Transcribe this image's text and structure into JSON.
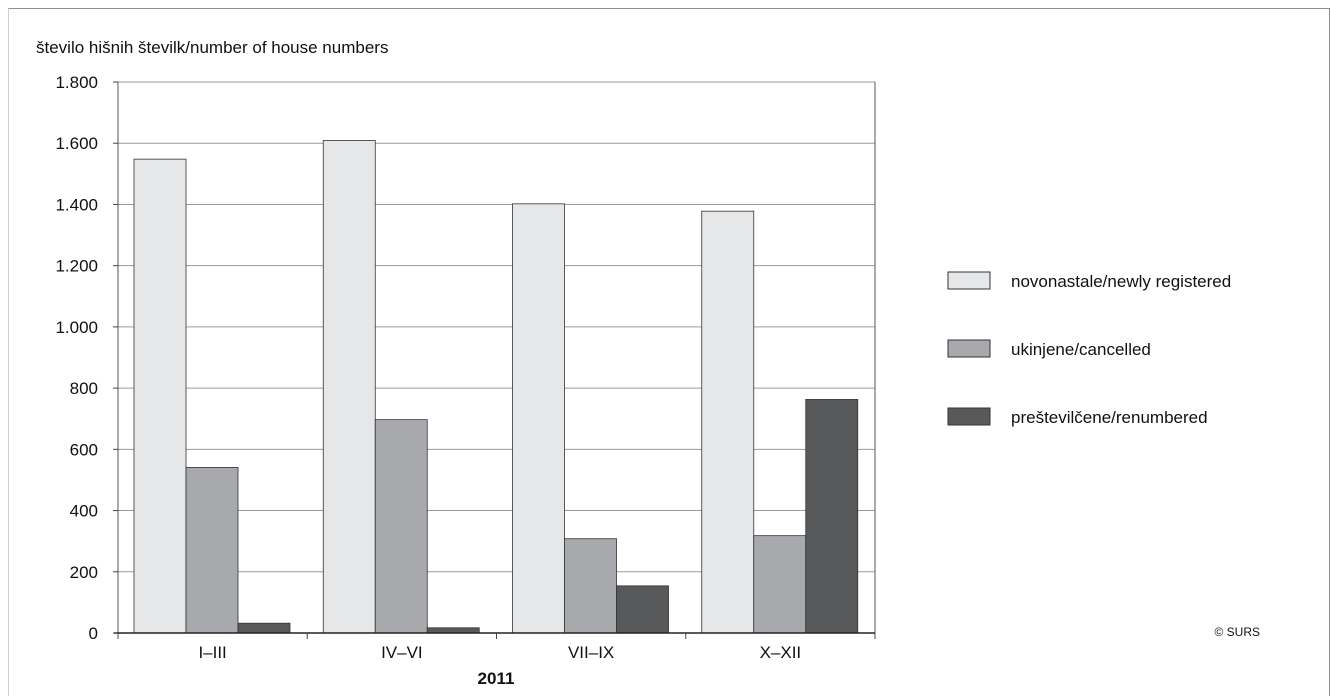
{
  "chart_data": {
    "type": "bar",
    "ylabel": "število hišnih številk/number of house numbers",
    "xlabel": "2011",
    "categories": [
      "I–III",
      "IV–VI",
      "VII–IX",
      "X–XII"
    ],
    "ylim": [
      0,
      1800
    ],
    "yticks": [
      0,
      200,
      400,
      600,
      800,
      1000,
      1200,
      1400,
      1600,
      1800
    ],
    "ytick_labels": [
      "0",
      "200",
      "400",
      "600",
      "800",
      "1.000",
      "1.200",
      "1.400",
      "1.600",
      "1.800"
    ],
    "grid": "horizontal",
    "legend_position": "right",
    "series": [
      {
        "name": "novonastale/newly registered",
        "color": "#e6e7e8",
        "values": [
          1548,
          1609,
          1402,
          1378
        ]
      },
      {
        "name": "ukinjene/cancelled",
        "color": "#a7a9ac",
        "values": [
          541,
          697,
          308,
          318
        ]
      },
      {
        "name": "preštevilčene/renumbered",
        "color": "#58595b",
        "values": [
          32,
          17,
          154,
          763
        ]
      }
    ],
    "credit": "© SURS"
  }
}
